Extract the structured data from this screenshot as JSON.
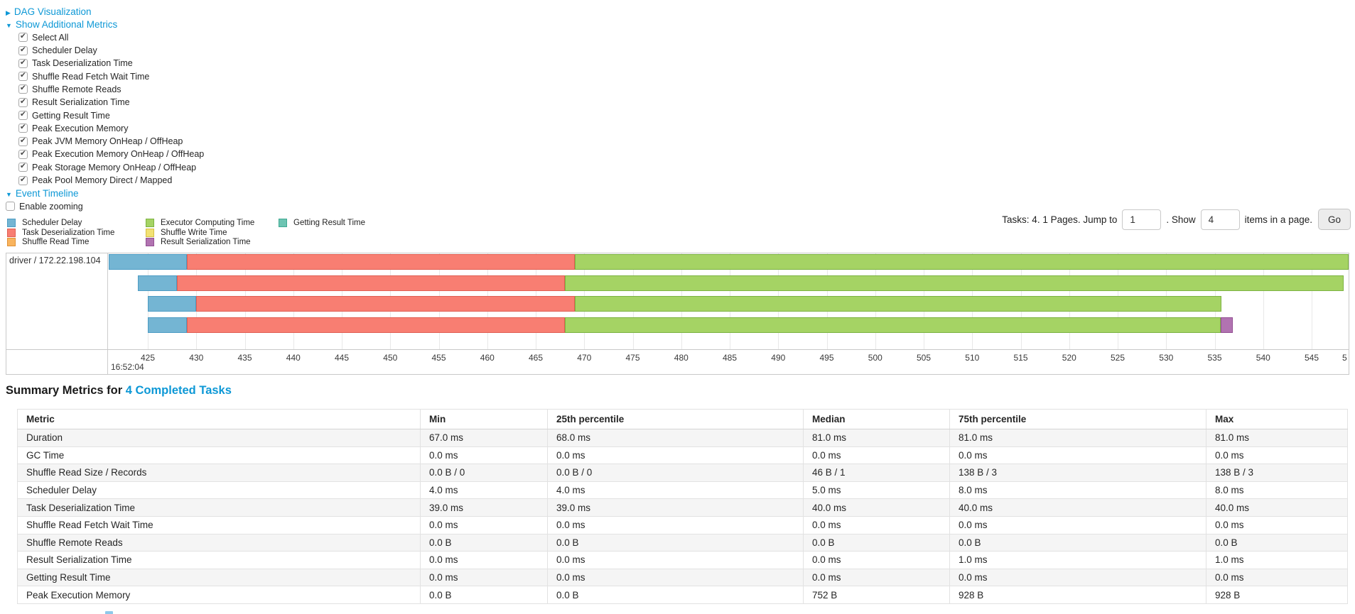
{
  "colors": {
    "link": "#0d98d6",
    "scheduler_delay": "#74B5D3",
    "scheduler_delay_border": "#4D9CC4",
    "task_deserialization": "#F87E72",
    "task_deserialization_border": "#E05F53",
    "shuffle_read": "#F9B45E",
    "shuffle_read_border": "#E09137",
    "executor_computing": "#A5D364",
    "executor_computing_border": "#7CB342",
    "shuffle_write": "#F2E174",
    "shuffle_write_border": "#D6C044",
    "result_serialization": "#B173B1",
    "result_serialization_border": "#935093",
    "getting_result": "#6DC4B2",
    "getting_result_border": "#3FA992"
  },
  "header": {
    "dag_label": "DAG Visualization",
    "dag_arrow": "▶",
    "metrics_label": "Show Additional Metrics",
    "metrics_arrow": "▼"
  },
  "metric_checkboxes": [
    {
      "label": "Select All",
      "checked": true,
      "name": "select-all"
    },
    {
      "label": "Scheduler Delay",
      "checked": true,
      "name": "scheduler-delay"
    },
    {
      "label": "Task Deserialization Time",
      "checked": true,
      "name": "task-deserialization-time"
    },
    {
      "label": "Shuffle Read Fetch Wait Time",
      "checked": true,
      "name": "shuffle-read-fetch-wait-time"
    },
    {
      "label": "Shuffle Remote Reads",
      "checked": true,
      "name": "shuffle-remote-reads"
    },
    {
      "label": "Result Serialization Time",
      "checked": true,
      "name": "result-serialization-time"
    },
    {
      "label": "Getting Result Time",
      "checked": true,
      "name": "getting-result-time"
    },
    {
      "label": "Peak Execution Memory",
      "checked": true,
      "name": "peak-execution-memory"
    },
    {
      "label": "Peak JVM Memory OnHeap / OffHeap",
      "checked": true,
      "name": "peak-jvm-memory-onheap-offheap"
    },
    {
      "label": "Peak Execution Memory OnHeap / OffHeap",
      "checked": true,
      "name": "peak-execution-memory-onheap-offheap"
    },
    {
      "label": "Peak Storage Memory OnHeap / OffHeap",
      "checked": true,
      "name": "peak-storage-memory-onheap-offheap"
    },
    {
      "label": "Peak Pool Memory Direct / Mapped",
      "checked": true,
      "name": "peak-pool-memory-direct-mapped"
    }
  ],
  "timeline_section": {
    "section_label": "Event Timeline",
    "section_arrow": "▼",
    "enable_zooming_label": "Enable zooming",
    "enable_zooming_checked": false
  },
  "pagination": {
    "tasks_text": "Tasks: 4. 1 Pages. Jump to",
    "jump_value": "1",
    "show_label": ". Show",
    "show_value": "4",
    "items_text": "items in a page.",
    "go_label": "Go"
  },
  "chart_data": {
    "type": "timeline",
    "title": "Event Timeline",
    "executor_label": "driver / 172.22.198.104",
    "time_label": "16:52:04",
    "x_unit": "milliseconds within second 16:52:04",
    "x_range_visible": [
      420.9,
      548.7
    ],
    "x_ticks": [
      425,
      430,
      435,
      440,
      445,
      450,
      455,
      460,
      465,
      470,
      475,
      480,
      485,
      490,
      495,
      500,
      505,
      510,
      515,
      520,
      525,
      530,
      535,
      540,
      545
    ],
    "x_partial_tick_label": "5",
    "legend": [
      [
        {
          "key": "scheduler_delay",
          "label": "Scheduler Delay"
        },
        {
          "key": "task_deserialization",
          "label": "Task Deserialization Time"
        },
        {
          "key": "shuffle_read",
          "label": "Shuffle Read Time"
        }
      ],
      [
        {
          "key": "executor_computing",
          "label": "Executor Computing Time"
        },
        {
          "key": "shuffle_write",
          "label": "Shuffle Write Time"
        },
        {
          "key": "result_serialization",
          "label": "Result Serialization Time"
        }
      ],
      [
        {
          "key": "getting_result",
          "label": "Getting Result Time"
        }
      ]
    ],
    "tasks": [
      {
        "row": 1,
        "segments": [
          {
            "key": "scheduler_delay",
            "start": 421.0,
            "end": 429.0
          },
          {
            "key": "task_deserialization",
            "start": 429.0,
            "end": 469.0
          },
          {
            "key": "executor_computing",
            "start": 469.0,
            "end": 552.0
          }
        ]
      },
      {
        "row": 2,
        "segments": [
          {
            "key": "scheduler_delay",
            "start": 424.0,
            "end": 428.0
          },
          {
            "key": "task_deserialization",
            "start": 428.0,
            "end": 468.0
          },
          {
            "key": "executor_computing",
            "start": 468.0,
            "end": 548.3
          }
        ]
      },
      {
        "row": 3,
        "segments": [
          {
            "key": "scheduler_delay",
            "start": 425.0,
            "end": 430.0
          },
          {
            "key": "task_deserialization",
            "start": 430.0,
            "end": 469.0
          },
          {
            "key": "executor_computing",
            "start": 469.0,
            "end": 535.7
          }
        ]
      },
      {
        "row": 4,
        "segments": [
          {
            "key": "scheduler_delay",
            "start": 425.0,
            "end": 429.0
          },
          {
            "key": "task_deserialization",
            "start": 429.0,
            "end": 468.0
          },
          {
            "key": "executor_computing",
            "start": 468.0,
            "end": 535.6
          },
          {
            "key": "result_serialization",
            "start": 535.6,
            "end": 536.9
          }
        ]
      }
    ]
  },
  "summary": {
    "title_prefix": "Summary Metrics for ",
    "title_link": "4 Completed Tasks",
    "columns": [
      "Metric",
      "Min",
      "25th percentile",
      "Median",
      "75th percentile",
      "Max"
    ],
    "rows": [
      {
        "metric": "Duration",
        "values": [
          "67.0 ms",
          "68.0 ms",
          "81.0 ms",
          "81.0 ms",
          "81.0 ms"
        ]
      },
      {
        "metric": "GC Time",
        "values": [
          "0.0 ms",
          "0.0 ms",
          "0.0 ms",
          "0.0 ms",
          "0.0 ms"
        ]
      },
      {
        "metric": "Shuffle Read Size / Records",
        "values": [
          "0.0 B / 0",
          "0.0 B / 0",
          "46 B / 1",
          "138 B / 3",
          "138 B / 3"
        ]
      },
      {
        "metric": "Scheduler Delay",
        "values": [
          "4.0 ms",
          "4.0 ms",
          "5.0 ms",
          "8.0 ms",
          "8.0 ms"
        ]
      },
      {
        "metric": "Task Deserialization Time",
        "values": [
          "39.0 ms",
          "39.0 ms",
          "40.0 ms",
          "40.0 ms",
          "40.0 ms"
        ]
      },
      {
        "metric": "Shuffle Read Fetch Wait Time",
        "values": [
          "0.0 ms",
          "0.0 ms",
          "0.0 ms",
          "0.0 ms",
          "0.0 ms"
        ]
      },
      {
        "metric": "Shuffle Remote Reads",
        "values": [
          "0.0 B",
          "0.0 B",
          "0.0 B",
          "0.0 B",
          "0.0 B"
        ]
      },
      {
        "metric": "Result Serialization Time",
        "values": [
          "0.0 ms",
          "0.0 ms",
          "0.0 ms",
          "1.0 ms",
          "1.0 ms"
        ]
      },
      {
        "metric": "Getting Result Time",
        "values": [
          "0.0 ms",
          "0.0 ms",
          "0.0 ms",
          "0.0 ms",
          "0.0 ms"
        ]
      },
      {
        "metric": "Peak Execution Memory",
        "values": [
          "0.0 B",
          "0.0 B",
          "752 B",
          "928 B",
          "928 B"
        ]
      }
    ]
  }
}
